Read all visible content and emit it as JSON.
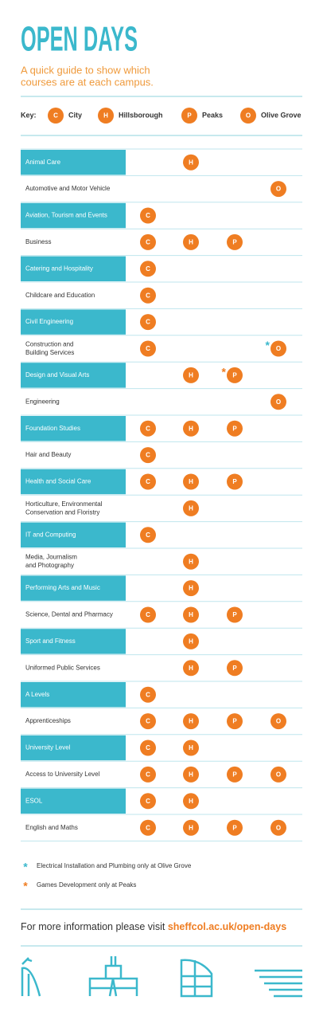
{
  "header": {
    "title": "OPEN DAYS",
    "subtitle": [
      "A quick guide to show which",
      "courses are at each campus."
    ]
  },
  "key": {
    "label": "Key:",
    "campuses": [
      {
        "letter": "C",
        "name": "City"
      },
      {
        "letter": "H",
        "name": "Hillsborough"
      },
      {
        "letter": "P",
        "name": "Peaks"
      },
      {
        "letter": "O",
        "name": "Olive Grove"
      }
    ]
  },
  "table": {
    "rows": [
      {
        "label": [
          "Animal Care"
        ],
        "campuses": [
          "H"
        ]
      },
      {
        "label": [
          "Automotive and Motor Vehicle"
        ],
        "campuses": [
          "O"
        ]
      },
      {
        "label": [
          "Aviation, Tourism and Events"
        ],
        "campuses": [
          "C"
        ]
      },
      {
        "label": [
          "Business"
        ],
        "campuses": [
          "C",
          "H",
          "P"
        ]
      },
      {
        "label": [
          "Catering and Hospitality"
        ],
        "campuses": [
          "C"
        ]
      },
      {
        "label": [
          "Childcare and Education"
        ],
        "campuses": [
          "C"
        ]
      },
      {
        "label": [
          "Civil Engineering"
        ],
        "campuses": [
          "C"
        ]
      },
      {
        "label": [
          "Construction and",
          "Building Services"
        ],
        "campuses": [
          "C",
          {
            "letter": "O",
            "mark": "*",
            "mark_color": "#3bb8cc"
          }
        ]
      },
      {
        "label": [
          "Design and Visual Arts"
        ],
        "campuses": [
          "H",
          {
            "letter": "P",
            "mark": "*",
            "mark_color": "#ef7d22"
          }
        ]
      },
      {
        "label": [
          "Engineering"
        ],
        "campuses": [
          "O"
        ]
      },
      {
        "label": [
          "Foundation Studies"
        ],
        "campuses": [
          "C",
          "H",
          "P"
        ]
      },
      {
        "label": [
          "Hair and Beauty"
        ],
        "campuses": [
          "C"
        ]
      },
      {
        "label": [
          "Health and Social Care"
        ],
        "campuses": [
          "C",
          "H",
          "P"
        ]
      },
      {
        "label": [
          "Horticulture, Environmental",
          "Conservation and Floristry"
        ],
        "campuses": [
          "H"
        ]
      },
      {
        "label": [
          "IT and Computing"
        ],
        "campuses": [
          "C"
        ]
      },
      {
        "label": [
          "Media, Journalism",
          "and Photography"
        ],
        "campuses": [
          "H"
        ]
      },
      {
        "label": [
          "Performing Arts and Music"
        ],
        "campuses": [
          "H"
        ]
      },
      {
        "label": [
          "Science, Dental and Pharmacy"
        ],
        "campuses": [
          "C",
          "H",
          "P"
        ]
      },
      {
        "label": [
          "Sport and Fitness"
        ],
        "campuses": [
          "H"
        ]
      },
      {
        "label": [
          "Uniformed Public Services"
        ],
        "campuses": [
          "H",
          "P"
        ]
      },
      {
        "label": [
          "A Levels"
        ],
        "campuses": [
          "C"
        ]
      },
      {
        "label": [
          "Apprenticeships"
        ],
        "campuses": [
          "C",
          "H",
          "P",
          "O"
        ]
      },
      {
        "label": [
          "University Level"
        ],
        "campuses": [
          "C",
          "H"
        ]
      },
      {
        "label": [
          "Access to University Level"
        ],
        "campuses": [
          "C",
          "H",
          "P",
          "O"
        ]
      },
      {
        "label": [
          "ESOL"
        ],
        "campuses": [
          "C",
          "H"
        ]
      },
      {
        "label": [
          "English and Maths"
        ],
        "campuses": [
          "C",
          "H",
          "P",
          "O"
        ]
      }
    ]
  },
  "footnotes": [
    {
      "symbol": "*",
      "color": "#3bb8cc",
      "text": "Electrical Installation and Plumbing only at Olive Grove"
    },
    {
      "symbol": "*",
      "color": "#ef7d22",
      "text": "Games Development only at Peaks"
    }
  ],
  "footer": {
    "text": "For more information please visit",
    "link": "sheffcol.ac.uk/open-days"
  }
}
